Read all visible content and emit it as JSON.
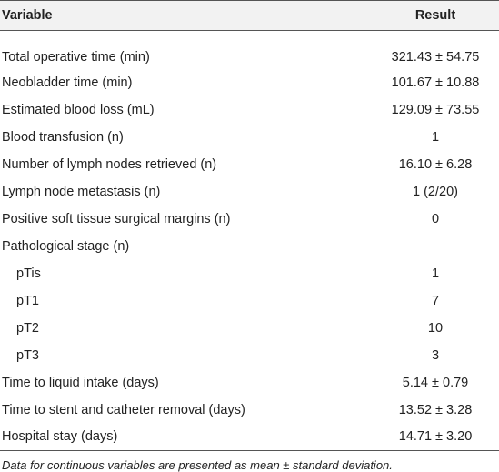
{
  "table": {
    "header": [
      "Variable",
      "Result"
    ],
    "rows": [
      {
        "variable": "Total operative time (min)",
        "result": "321.43 ± 54.75"
      },
      {
        "variable": "Neobladder time (min)",
        "result": "101.67 ± 10.88"
      },
      {
        "variable": "Estimated blood loss (mL)",
        "result": "129.09 ± 73.55"
      },
      {
        "variable": "Blood transfusion (n)",
        "result": "1"
      },
      {
        "variable": "Number of lymph nodes retrieved (n)",
        "result": "16.10 ± 6.28"
      },
      {
        "variable": "Lymph node metastasis (n)",
        "result": "1 (2/20)"
      },
      {
        "variable": "Positive soft tissue surgical margins (n)",
        "result": "0"
      },
      {
        "variable": "Pathological stage (n)",
        "subrows": [
          {
            "variable": "pTis",
            "result": "1"
          },
          {
            "variable": "pT1",
            "result": "7"
          },
          {
            "variable": "pT2",
            "result": "10"
          },
          {
            "variable": "pT3",
            "result": "3"
          }
        ]
      },
      {
        "variable": "Time to liquid intake (days)",
        "result": "5.14 ± 0.79"
      },
      {
        "variable": "Time to stent and catheter removal (days)",
        "result": "13.52 ± 3.28"
      },
      {
        "variable": "Hospital stay (days)",
        "result": "14.71 ± 3.20"
      }
    ],
    "footnote": "Data for continuous variables are presented as mean ± standard deviation."
  }
}
